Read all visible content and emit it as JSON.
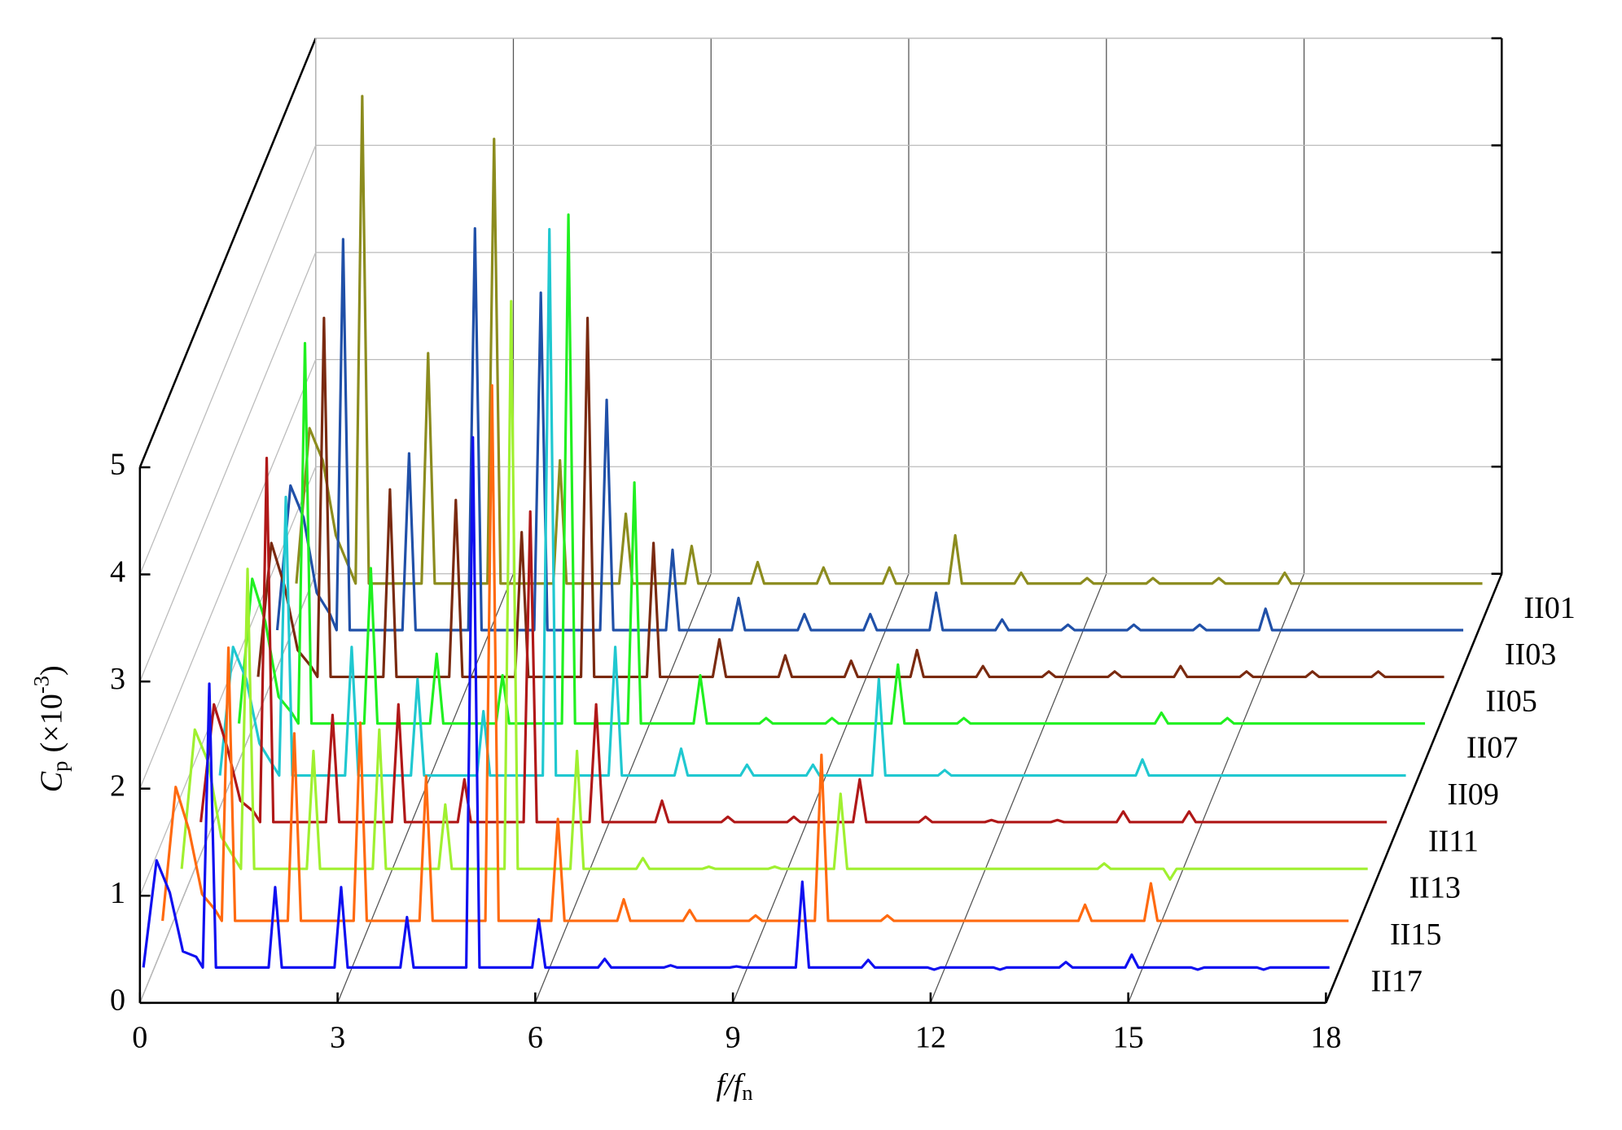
{
  "chart_data": {
    "type": "waterfall3d",
    "xlabel": {
      "main": "f/f",
      "sub": "n"
    },
    "ylabel": {
      "symbol": "C",
      "sub": "p",
      "unit": "(×10",
      "exponent": "-3",
      "close": ")"
    },
    "xlim": [
      0,
      18
    ],
    "xticks": [
      0,
      3,
      6,
      9,
      12,
      15,
      18
    ],
    "ylim": [
      0,
      5
    ],
    "yticks": [
      0,
      1,
      2,
      3,
      4,
      5
    ],
    "grid": true,
    "x": [
      0,
      0.2,
      0.4,
      0.6,
      0.8,
      0.9,
      1,
      1.1,
      1.9,
      2,
      2.1,
      2.9,
      3,
      3.1,
      3.9,
      4,
      4.1,
      4.9,
      5,
      5.1,
      5.9,
      6,
      6.1,
      6.9,
      7,
      7.1,
      7.9,
      8,
      8.1,
      8.9,
      9,
      9.1,
      9.9,
      10,
      10.1,
      10.9,
      11,
      11.1,
      11.9,
      12,
      12.1,
      12.9,
      13,
      13.1,
      13.9,
      14,
      14.1,
      14.9,
      15,
      15.1,
      15.9,
      16,
      16.1,
      16.9,
      17,
      17.1,
      18
    ],
    "series": [
      {
        "name": "II01",
        "color": "#8c8c1e",
        "values": [
          0.35,
          1.8,
          1.5,
          0.8,
          0.5,
          0.35,
          4.9,
          0.35,
          0.35,
          2.5,
          0.35,
          0.35,
          4.5,
          0.35,
          0.35,
          1.5,
          0.35,
          0.35,
          1.0,
          0.35,
          0.35,
          0.7,
          0.35,
          0.35,
          0.55,
          0.35,
          0.35,
          0.5,
          0.35,
          0.35,
          0.5,
          0.35,
          0.35,
          0.8,
          0.35,
          0.35,
          0.45,
          0.35,
          0.35,
          0.4,
          0.35,
          0.35,
          0.4,
          0.35,
          0.35,
          0.4,
          0.35,
          0.35,
          0.45,
          0.35,
          0.35,
          0.35,
          0.35,
          0.35,
          0.35,
          0.35,
          0.35
        ]
      },
      {
        "name": "II03",
        "color": "#2050a8",
        "values": [
          0.35,
          1.7,
          1.4,
          0.7,
          0.5,
          0.35,
          4.0,
          0.35,
          0.35,
          2.0,
          0.35,
          0.35,
          4.1,
          0.35,
          0.35,
          3.5,
          0.35,
          0.35,
          2.5,
          0.35,
          0.35,
          1.1,
          0.35,
          0.35,
          0.65,
          0.35,
          0.35,
          0.5,
          0.35,
          0.35,
          0.5,
          0.35,
          0.35,
          0.7,
          0.35,
          0.35,
          0.45,
          0.35,
          0.35,
          0.4,
          0.35,
          0.35,
          0.4,
          0.35,
          0.35,
          0.4,
          0.35,
          0.35,
          0.55,
          0.35,
          0.35,
          0.35,
          0.35,
          0.35,
          0.35,
          0.35,
          0.35
        ]
      },
      {
        "name": "II05",
        "color": "#7a2a10",
        "values": [
          0.35,
          1.6,
          1.2,
          0.6,
          0.45,
          0.35,
          3.7,
          0.35,
          0.35,
          2.1,
          0.35,
          0.35,
          2.0,
          0.35,
          0.35,
          1.7,
          0.35,
          0.35,
          3.7,
          0.35,
          0.35,
          1.6,
          0.35,
          0.35,
          0.7,
          0.35,
          0.35,
          0.55,
          0.35,
          0.35,
          0.5,
          0.35,
          0.35,
          0.6,
          0.35,
          0.35,
          0.45,
          0.35,
          0.35,
          0.4,
          0.35,
          0.35,
          0.4,
          0.35,
          0.35,
          0.45,
          0.35,
          0.35,
          0.4,
          0.35,
          0.35,
          0.4,
          0.35,
          0.35,
          0.4,
          0.35,
          0.35
        ]
      },
      {
        "name": "II07",
        "color": "#20f020",
        "values": [
          0.35,
          1.7,
          1.3,
          0.6,
          0.45,
          0.35,
          3.9,
          0.35,
          0.35,
          1.8,
          0.35,
          0.35,
          1.0,
          0.35,
          0.35,
          0.8,
          0.35,
          0.35,
          5.1,
          0.35,
          0.35,
          2.6,
          0.35,
          0.35,
          0.8,
          0.35,
          0.35,
          0.4,
          0.35,
          0.35,
          0.4,
          0.35,
          0.35,
          0.9,
          0.35,
          0.35,
          0.4,
          0.35,
          0.35,
          0.35,
          0.35,
          0.35,
          0.35,
          0.35,
          0.35,
          0.45,
          0.35,
          0.35,
          0.4,
          0.35,
          0.35,
          0.35,
          0.35,
          0.35,
          0.35,
          0.35,
          0.35
        ]
      },
      {
        "name": "II09",
        "color": "#20c8d0",
        "values": [
          0.3,
          1.5,
          1.2,
          0.6,
          0.4,
          0.3,
          2.9,
          0.3,
          0.3,
          1.5,
          0.3,
          0.3,
          1.2,
          0.3,
          0.3,
          0.9,
          0.3,
          0.3,
          5.4,
          0.3,
          0.3,
          1.5,
          0.3,
          0.3,
          0.55,
          0.3,
          0.3,
          0.4,
          0.3,
          0.3,
          0.4,
          0.3,
          0.3,
          1.2,
          0.3,
          0.3,
          0.35,
          0.3,
          0.3,
          0.3,
          0.3,
          0.3,
          0.3,
          0.3,
          0.3,
          0.45,
          0.3,
          0.3,
          0.3,
          0.3,
          0.3,
          0.3,
          0.3,
          0.3,
          0.3,
          0.3,
          0.3
        ]
      },
      {
        "name": "II11",
        "color": "#b01818",
        "values": [
          0.3,
          1.4,
          1.0,
          0.5,
          0.4,
          0.3,
          3.7,
          0.3,
          0.3,
          1.3,
          0.3,
          0.3,
          1.4,
          0.3,
          0.3,
          0.7,
          0.3,
          0.3,
          3.2,
          0.3,
          0.3,
          1.4,
          0.3,
          0.3,
          0.5,
          0.3,
          0.3,
          0.35,
          0.3,
          0.3,
          0.35,
          0.3,
          0.3,
          0.7,
          0.3,
          0.3,
          0.35,
          0.3,
          0.3,
          0.32,
          0.3,
          0.3,
          0.32,
          0.3,
          0.3,
          0.4,
          0.3,
          0.3,
          0.4,
          0.3,
          0.3,
          0.3,
          0.3,
          0.3,
          0.3,
          0.3,
          0.3
        ]
      },
      {
        "name": "II13",
        "color": "#a0f030",
        "values": [
          0.3,
          1.6,
          1.3,
          0.6,
          0.4,
          0.3,
          3.1,
          0.3,
          0.3,
          1.4,
          0.3,
          0.3,
          1.6,
          0.3,
          0.3,
          0.9,
          0.3,
          0.3,
          5.6,
          0.3,
          0.3,
          1.4,
          0.3,
          0.3,
          0.4,
          0.3,
          0.3,
          0.32,
          0.3,
          0.3,
          0.32,
          0.3,
          0.3,
          1.0,
          0.3,
          0.3,
          0.3,
          0.3,
          0.3,
          0.3,
          0.3,
          0.3,
          0.3,
          0.3,
          0.3,
          0.35,
          0.3,
          0.3,
          0.2,
          0.3,
          0.3,
          0.3,
          0.3,
          0.3,
          0.3,
          0.3,
          0.3
        ]
      },
      {
        "name": "II15",
        "color": "#ff6a10",
        "values": [
          0.25,
          1.5,
          1.1,
          0.5,
          0.35,
          0.25,
          2.8,
          0.25,
          0.25,
          2.0,
          0.25,
          0.25,
          2.1,
          0.25,
          0.25,
          1.6,
          0.25,
          0.25,
          5.25,
          0.25,
          0.25,
          1.2,
          0.25,
          0.25,
          0.45,
          0.25,
          0.25,
          0.35,
          0.25,
          0.25,
          0.3,
          0.25,
          0.25,
          1.8,
          0.25,
          0.25,
          0.3,
          0.25,
          0.25,
          0.25,
          0.25,
          0.25,
          0.25,
          0.25,
          0.25,
          0.4,
          0.25,
          0.25,
          0.6,
          0.25,
          0.25,
          0.25,
          0.25,
          0.25,
          0.25,
          0.25,
          0.25
        ]
      },
      {
        "name": "II17",
        "color": "#1010f0",
        "values": [
          0.25,
          1.25,
          0.95,
          0.4,
          0.35,
          0.25,
          2.9,
          0.25,
          0.25,
          1.0,
          0.25,
          0.25,
          1.0,
          0.25,
          0.25,
          0.72,
          0.25,
          0.25,
          5.2,
          0.25,
          0.25,
          0.7,
          0.25,
          0.25,
          0.33,
          0.25,
          0.25,
          0.27,
          0.25,
          0.25,
          0.26,
          0.25,
          0.25,
          1.05,
          0.25,
          0.25,
          0.32,
          0.25,
          0.25,
          0.23,
          0.25,
          0.25,
          0.23,
          0.25,
          0.25,
          0.3,
          0.25,
          0.25,
          0.37,
          0.25,
          0.25,
          0.23,
          0.25,
          0.25,
          0.23,
          0.25,
          0.25
        ]
      }
    ]
  }
}
